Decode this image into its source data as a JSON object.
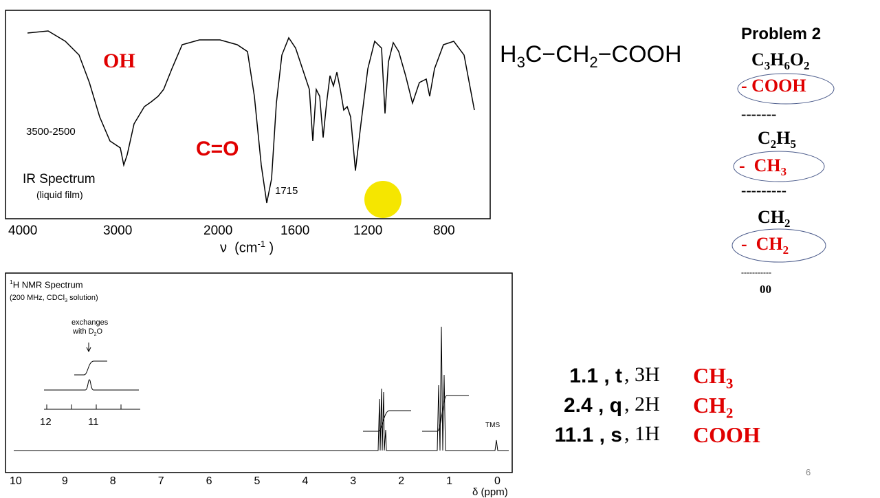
{
  "formula": [
    {
      "text": "H"
    },
    {
      "sub": "3"
    },
    {
      "text": "C−CH"
    },
    {
      "sub": "2"
    },
    {
      "text": "−COOH"
    }
  ],
  "ir": {
    "oh": "OH",
    "co": "C=O",
    "range": "3500-2500",
    "peak": "1715",
    "title": "IR Spectrum",
    "subtitle": "(liquid film)",
    "axis_ticks": [
      "4000",
      "3000",
      "2000",
      "1600",
      "1200",
      "800"
    ],
    "axis_label": [
      {
        "text": "ν  (cm"
      },
      {
        "sup": "-1"
      },
      {
        "text": " )"
      }
    ]
  },
  "problem": {
    "title": "Problem 2",
    "steps": [
      {
        "segments": [
          {
            "text": "C"
          },
          {
            "sub": "3"
          },
          {
            "text": "H"
          },
          {
            "sub": "6"
          },
          {
            "text": "O"
          },
          {
            "sub": "2"
          }
        ],
        "color": "#000000"
      },
      {
        "segments": [
          {
            "text": "- COOH"
          }
        ],
        "color": "#e00000"
      },
      {
        "segments": [
          {
            "text": "-------"
          }
        ],
        "color": "#000000"
      },
      {
        "segments": [
          {
            "text": "C"
          },
          {
            "sub": "2"
          },
          {
            "text": "H"
          },
          {
            "sub": "5"
          }
        ],
        "color": "#000000"
      },
      {
        "segments": [
          {
            "text": "-  CH"
          },
          {
            "sub": "3"
          }
        ],
        "color": "#e00000"
      },
      {
        "segments": [
          {
            "text": "---------"
          }
        ],
        "color": "#000000"
      },
      {
        "segments": [
          {
            "text": "CH"
          },
          {
            "sub": "2"
          }
        ],
        "color": "#000000"
      },
      {
        "segments": [
          {
            "text": "-  CH"
          },
          {
            "sub": "2"
          }
        ],
        "color": "#e00000"
      },
      {
        "segments": [
          {
            "text": "-----------"
          }
        ],
        "color": "#000000"
      },
      {
        "segments": [
          {
            "text": "00"
          }
        ],
        "color": "#000000"
      }
    ]
  },
  "nmr": {
    "title": [
      {
        "sup": "1"
      },
      {
        "text": "H NMR Spectrum"
      }
    ],
    "subtitle": [
      {
        "text": "(200 MHz, CDCl"
      },
      {
        "sub": "3"
      },
      {
        "text": " solution)"
      }
    ],
    "inset_note": "exchanges",
    "inset_note2": [
      {
        "text": "with D"
      },
      {
        "sub": "2"
      },
      {
        "text": "O"
      }
    ],
    "inset_ticks": [
      "12",
      "11"
    ],
    "tms": "TMS",
    "axis_ticks": [
      "10",
      "9",
      "8",
      "7",
      "6",
      "5",
      "4",
      "3",
      "2",
      "1",
      "0"
    ],
    "axis_label": "δ (ppm)"
  },
  "assignments": [
    {
      "shift": "1.1 , t",
      "count": ", 3H",
      "group": [
        {
          "text": "CH"
        },
        {
          "sub": "3"
        }
      ]
    },
    {
      "shift": "2.4 , q",
      "count": ", 2H",
      "group": [
        {
          "text": "CH"
        },
        {
          "sub": "2"
        }
      ]
    },
    {
      "shift": "11.1 , s",
      "count": ", 1H",
      "group": [
        {
          "text": "COOH"
        }
      ]
    }
  ],
  "page_number": "6"
}
